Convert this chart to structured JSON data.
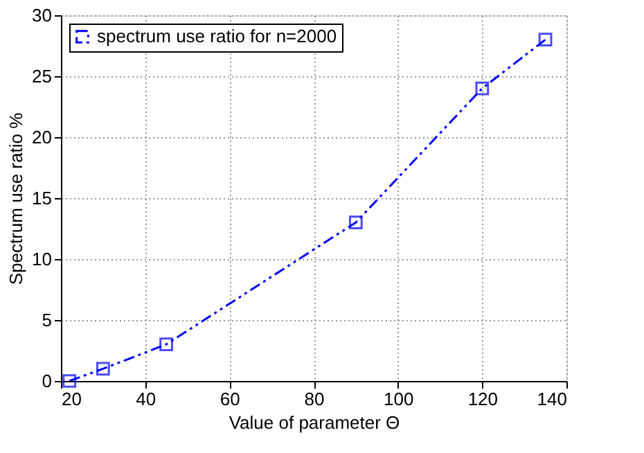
{
  "chart_data": {
    "type": "line",
    "xlabel": "Value of parameter Θ",
    "ylabel": "Spectrum use ratio %",
    "x": [
      22,
      30,
      45,
      90,
      120,
      135
    ],
    "series": [
      {
        "name": "spectrum use ratio for n=2000",
        "color": "#0000ff",
        "values": [
          0,
          1,
          3,
          13,
          24,
          28
        ]
      }
    ],
    "xlim": [
      20,
      140
    ],
    "xticks": [
      20,
      40,
      60,
      80,
      100,
      120,
      140
    ],
    "ylim": [
      0,
      30
    ],
    "yticks": [
      0,
      5,
      10,
      15,
      20,
      25,
      30
    ],
    "grid": true,
    "legend": "top left",
    "marker": "square",
    "line_style": "dashed"
  }
}
